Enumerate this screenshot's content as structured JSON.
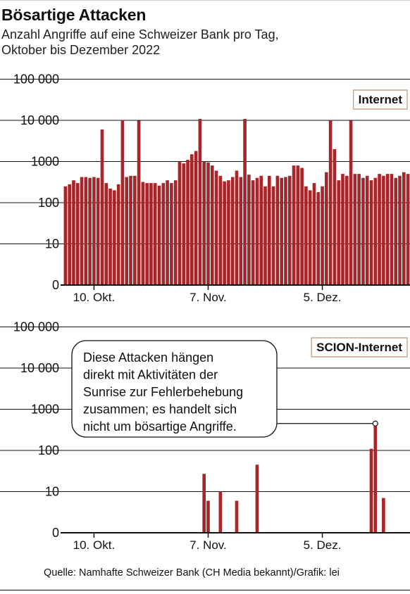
{
  "title": "Bösartige Attacken",
  "subtitle_line1": "Anzahl Angriffe auf eine Schweizer Bank pro Tag,",
  "subtitle_line2": "Oktober bis Dezember 2022",
  "source": "Quelle: Namhafte Schweizer Bank (CH Media bekannt)/Grafik: lei",
  "annotation": {
    "lines": [
      "Diese Attacken hängen",
      "direkt mit Aktivitäten der",
      "Sunrise zur Fehlerbehebung",
      "zusammen; es handelt sich",
      "nicht um bösartige Angriffe."
    ]
  },
  "colors": {
    "bar": "#a8262a",
    "legend_border": "#c9a88e",
    "axis": "#111111"
  },
  "chart_data": [
    {
      "type": "bar",
      "legend": "Internet",
      "scale": "log",
      "y_ticks": [
        "0",
        "10",
        "100",
        "1000",
        "10 000",
        "100 000"
      ],
      "x_ticks": [
        "10. Okt.",
        "7. Nov.",
        "5. Dez."
      ],
      "x_range": [
        "2022-10-03",
        "2022-12-26"
      ],
      "grid": true,
      "x": [
        "2022-10-03",
        "2022-10-04",
        "2022-10-05",
        "2022-10-06",
        "2022-10-07",
        "2022-10-08",
        "2022-10-09",
        "2022-10-10",
        "2022-10-11",
        "2022-10-12",
        "2022-10-13",
        "2022-10-14",
        "2022-10-15",
        "2022-10-16",
        "2022-10-17",
        "2022-10-18",
        "2022-10-19",
        "2022-10-20",
        "2022-10-21",
        "2022-10-22",
        "2022-10-23",
        "2022-10-24",
        "2022-10-25",
        "2022-10-26",
        "2022-10-27",
        "2022-10-28",
        "2022-10-29",
        "2022-10-30",
        "2022-10-31",
        "2022-11-01",
        "2022-11-02",
        "2022-11-03",
        "2022-11-04",
        "2022-11-05",
        "2022-11-06",
        "2022-11-07",
        "2022-11-08",
        "2022-11-09",
        "2022-11-10",
        "2022-11-11",
        "2022-11-12",
        "2022-11-13",
        "2022-11-14",
        "2022-11-15",
        "2022-11-16",
        "2022-11-17",
        "2022-11-18",
        "2022-11-19",
        "2022-11-20",
        "2022-11-21",
        "2022-11-22",
        "2022-11-23",
        "2022-11-24",
        "2022-11-25",
        "2022-11-26",
        "2022-11-27",
        "2022-11-28",
        "2022-11-29",
        "2022-11-30",
        "2022-12-01",
        "2022-12-02",
        "2022-12-03",
        "2022-12-04",
        "2022-12-05",
        "2022-12-06",
        "2022-12-07",
        "2022-12-08",
        "2022-12-09",
        "2022-12-10",
        "2022-12-11",
        "2022-12-12",
        "2022-12-13",
        "2022-12-14",
        "2022-12-15",
        "2022-12-16",
        "2022-12-17",
        "2022-12-18",
        "2022-12-19",
        "2022-12-20",
        "2022-12-21",
        "2022-12-22",
        "2022-12-23",
        "2022-12-24",
        "2022-12-25",
        "2022-12-26"
      ],
      "values": [
        250,
        280,
        350,
        300,
        420,
        420,
        400,
        420,
        400,
        6000,
        300,
        220,
        200,
        280,
        10000,
        420,
        450,
        450,
        9800,
        320,
        300,
        300,
        300,
        260,
        300,
        350,
        300,
        350,
        1000,
        900,
        1100,
        1500,
        1800,
        10800,
        1000,
        950,
        800,
        600,
        450,
        330,
        350,
        420,
        600,
        420,
        10800,
        480,
        350,
        400,
        450,
        250,
        450,
        250,
        450,
        400,
        420,
        450,
        800,
        800,
        700,
        250,
        200,
        300,
        180,
        250,
        550,
        10000,
        2000,
        350,
        500,
        450,
        9800,
        500,
        500,
        400,
        450,
        350,
        400,
        500,
        450,
        500,
        500,
        400,
        450,
        550,
        500
      ]
    },
    {
      "type": "bar",
      "legend": "SCION-Internet",
      "scale": "log",
      "y_ticks": [
        "0",
        "10",
        "100",
        "1000",
        "10 000",
        "100 000"
      ],
      "x_ticks": [
        "10. Okt.",
        "7. Nov.",
        "5. Dez."
      ],
      "x_range": [
        "2022-10-03",
        "2022-12-26"
      ],
      "grid": true,
      "x": [
        "2022-11-06",
        "2022-11-07",
        "2022-11-10",
        "2022-11-14",
        "2022-11-19",
        "2022-12-17",
        "2022-12-18",
        "2022-12-20"
      ],
      "values": [
        27,
        6,
        10,
        6,
        45,
        110,
        450,
        7
      ]
    }
  ]
}
